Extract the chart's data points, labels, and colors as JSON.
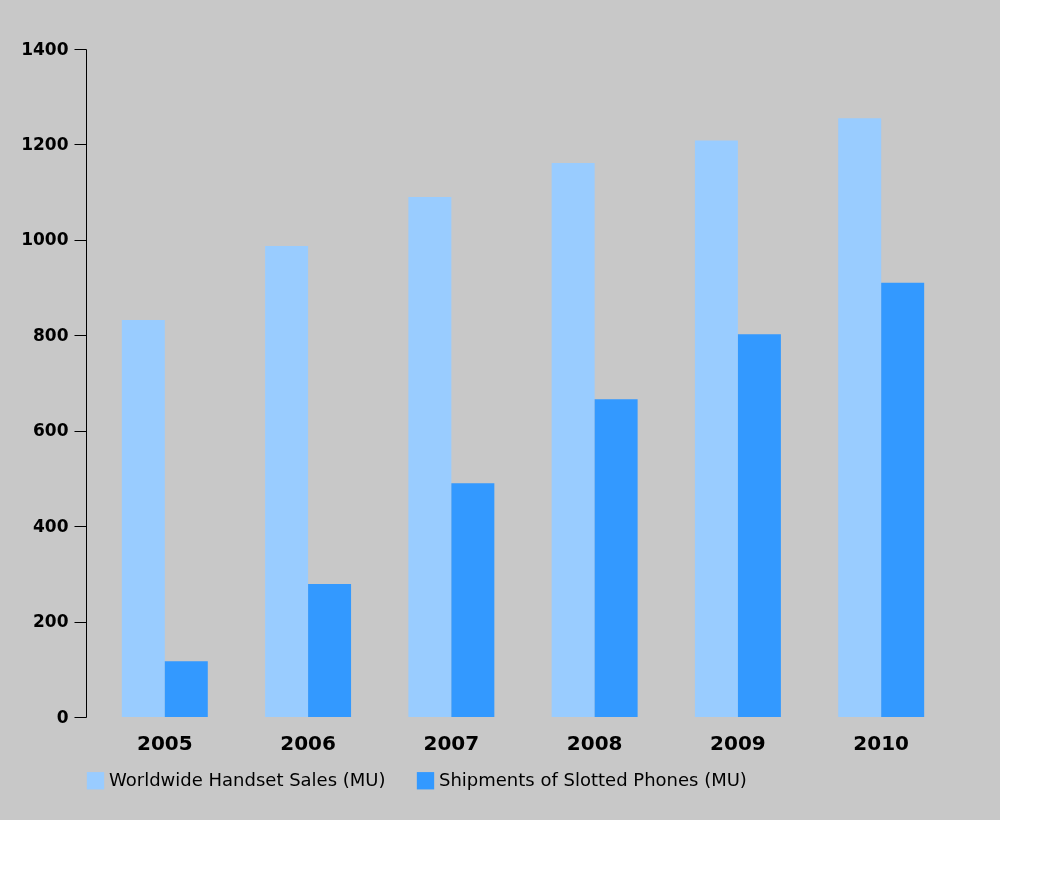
{
  "chart_data": {
    "type": "bar",
    "categories": [
      "2005",
      "2006",
      "2007",
      "2008",
      "2009",
      "2010"
    ],
    "series": [
      {
        "name": "Worldwide Handset Sales (MU)",
        "color": "#99ccff",
        "values": [
          832,
          987,
          1090,
          1161,
          1208,
          1255
        ]
      },
      {
        "name": "Shipments of Slotted Phones (MU)",
        "color": "#3399ff",
        "values": [
          117,
          279,
          490,
          666,
          802,
          910
        ]
      }
    ],
    "ylim": [
      0,
      1400
    ],
    "yticks": [
      0,
      200,
      400,
      600,
      800,
      1000,
      1200,
      1400
    ],
    "grid": false,
    "legend": "bottom"
  }
}
